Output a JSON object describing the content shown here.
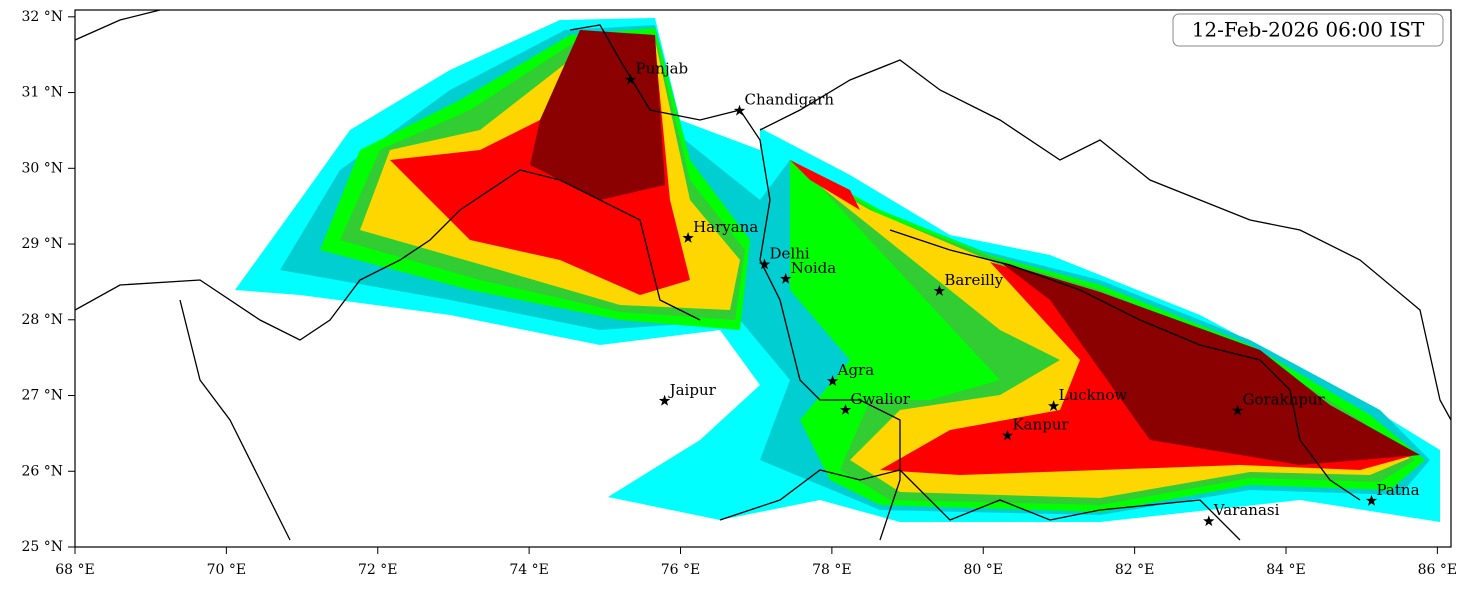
{
  "map": {
    "timestamp": "12-Feb-2026 06:00 IST",
    "xlim": [
      68,
      86.18
    ],
    "ylim": [
      25,
      32.09
    ],
    "xticks": [
      {
        "value": 68,
        "label": "68 °E"
      },
      {
        "value": 70,
        "label": "70 °E"
      },
      {
        "value": 72,
        "label": "72 °E"
      },
      {
        "value": 74,
        "label": "74 °E"
      },
      {
        "value": 76,
        "label": "76 °E"
      },
      {
        "value": 78,
        "label": "78 °E"
      },
      {
        "value": 80,
        "label": "80 °E"
      },
      {
        "value": 82,
        "label": "82 °E"
      },
      {
        "value": 84,
        "label": "84 °E"
      },
      {
        "value": 86,
        "label": "86 °E"
      }
    ],
    "yticks": [
      {
        "value": 25,
        "label": "25 °N"
      },
      {
        "value": 26,
        "label": "26 °N"
      },
      {
        "value": 27,
        "label": "27 °N"
      },
      {
        "value": 28,
        "label": "28 °N"
      },
      {
        "value": 29,
        "label": "29 °N"
      },
      {
        "value": 30,
        "label": "30 °N"
      },
      {
        "value": 31,
        "label": "31 °N"
      },
      {
        "value": 32,
        "label": "32 °N"
      }
    ],
    "places": [
      {
        "name": "Punjab",
        "lon": 75.34,
        "lat": 31.17
      },
      {
        "name": "Chandigarh",
        "lon": 76.78,
        "lat": 30.76
      },
      {
        "name": "Haryana",
        "lon": 76.1,
        "lat": 29.08
      },
      {
        "name": "Delhi",
        "lon": 77.11,
        "lat": 28.73
      },
      {
        "name": "Noida",
        "lon": 77.39,
        "lat": 28.54
      },
      {
        "name": "Bareilly",
        "lon": 79.42,
        "lat": 28.38
      },
      {
        "name": "Agra",
        "lon": 78.01,
        "lat": 27.19
      },
      {
        "name": "Jaipur",
        "lon": 75.79,
        "lat": 26.93
      },
      {
        "name": "Gwalior",
        "lon": 78.18,
        "lat": 26.81
      },
      {
        "name": "Lucknow",
        "lon": 80.93,
        "lat": 26.86
      },
      {
        "name": "Kanpur",
        "lon": 80.32,
        "lat": 26.47
      },
      {
        "name": "Gorakhpur",
        "lon": 83.36,
        "lat": 26.8
      },
      {
        "name": "Varanasi",
        "lon": 82.98,
        "lat": 25.34
      },
      {
        "name": "Patna",
        "lon": 85.13,
        "lat": 25.61
      }
    ]
  }
}
